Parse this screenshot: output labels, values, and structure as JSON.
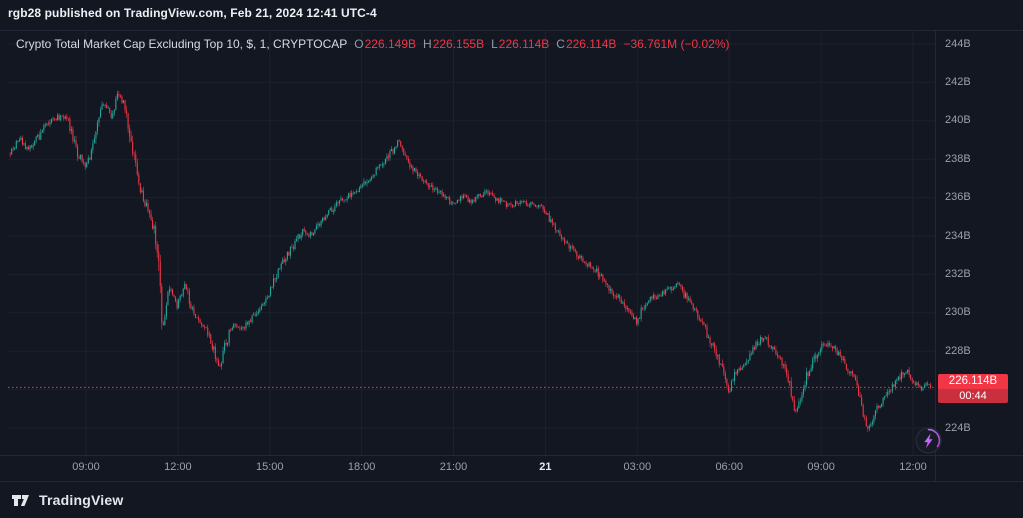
{
  "header": {
    "published_line": "rgb28 published on TradingView.com, Feb 21, 2024 12:41 UTC-4"
  },
  "symbol_bar": {
    "title": "Crypto Total Market Cap Excluding Top 10, $, 1, CRYPTOCAP",
    "ohlc": [
      {
        "name": "open",
        "label": "O",
        "value": "226.149B"
      },
      {
        "name": "high",
        "label": "H",
        "value": "226.155B"
      },
      {
        "name": "low",
        "label": "L",
        "value": "226.114B"
      },
      {
        "name": "close",
        "label": "C",
        "value": "226.114B"
      }
    ],
    "change": "−36.761M (−0.02%)"
  },
  "price_scale": {
    "suffix": "B",
    "ticks": [
      244,
      242,
      240,
      238,
      236,
      234,
      232,
      230,
      228,
      224
    ]
  },
  "time_scale": {
    "ticks": [
      {
        "text": "09:00",
        "minutes": 150,
        "emphasis": false
      },
      {
        "text": "12:00",
        "minutes": 330,
        "emphasis": false
      },
      {
        "text": "15:00",
        "minutes": 510,
        "emphasis": false
      },
      {
        "text": "18:00",
        "minutes": 690,
        "emphasis": false
      },
      {
        "text": "21:00",
        "minutes": 870,
        "emphasis": false
      },
      {
        "text": "21",
        "minutes": 1050,
        "emphasis": true
      },
      {
        "text": "03:00",
        "minutes": 1230,
        "emphasis": false
      },
      {
        "text": "06:00",
        "minutes": 1410,
        "emphasis": false
      },
      {
        "text": "09:00",
        "minutes": 1590,
        "emphasis": false
      },
      {
        "text": "12:00",
        "minutes": 1770,
        "emphasis": false
      }
    ]
  },
  "price_label": {
    "value": "226.114B",
    "countdown": "00:44"
  },
  "footer": {
    "brand": "TradingView"
  },
  "chart_data": {
    "type": "candlestick",
    "title": "Crypto Total Market Cap Excluding Top 10, $, 1, CRYPTOCAP",
    "interval": "1 minute",
    "unit": "billions USD",
    "ohlc": {
      "open": 226.149,
      "high": 226.155,
      "low": 226.114,
      "close": 226.114
    },
    "change_abs": "−36.761M",
    "change_pct": "−0.02%",
    "last_price": 226.114,
    "bar_countdown": "00:44",
    "y_axis": {
      "min": 222.6,
      "max": 244.7,
      "tick_interval": 2,
      "grid": [
        224,
        226,
        228,
        230,
        232,
        234,
        236,
        238,
        240,
        242,
        244
      ]
    },
    "x_axis_note": "minutes measured from ~06:30 on Feb 20, UTC-4; session ends 12:41 Feb 21",
    "colors": {
      "up": "#26a69a",
      "down": "#f23645",
      "badge": "#f23645",
      "badge_countdown": "#c92f3d"
    },
    "price_path": [
      [
        0,
        238.3
      ],
      [
        12,
        238.7
      ],
      [
        25,
        239.0
      ],
      [
        35,
        238.5
      ],
      [
        48,
        238.8
      ],
      [
        60,
        239.2
      ],
      [
        72,
        239.7
      ],
      [
        85,
        240.0
      ],
      [
        100,
        240.2
      ],
      [
        112,
        240.3
      ],
      [
        122,
        239.5
      ],
      [
        135,
        238.3
      ],
      [
        150,
        237.7
      ],
      [
        160,
        238.1
      ],
      [
        170,
        239.3
      ],
      [
        180,
        240.4
      ],
      [
        187,
        241.0
      ],
      [
        194,
        240.6
      ],
      [
        202,
        240.2
      ],
      [
        210,
        241.1
      ],
      [
        217,
        241.5
      ],
      [
        224,
        240.9
      ],
      [
        232,
        240.2
      ],
      [
        242,
        238.6
      ],
      [
        252,
        237.2
      ],
      [
        263,
        236.0
      ],
      [
        274,
        235.2
      ],
      [
        285,
        234.5
      ],
      [
        295,
        232.2
      ],
      [
        302,
        228.9
      ],
      [
        308,
        230.4
      ],
      [
        315,
        231.3
      ],
      [
        322,
        230.8
      ],
      [
        330,
        230.3
      ],
      [
        338,
        231.0
      ],
      [
        346,
        231.5
      ],
      [
        355,
        230.5
      ],
      [
        364,
        229.8
      ],
      [
        375,
        229.4
      ],
      [
        388,
        229.0
      ],
      [
        398,
        228.4
      ],
      [
        406,
        227.6
      ],
      [
        413,
        227.1
      ],
      [
        421,
        228.0
      ],
      [
        432,
        228.9
      ],
      [
        444,
        229.4
      ],
      [
        456,
        229.1
      ],
      [
        470,
        229.5
      ],
      [
        484,
        230.0
      ],
      [
        498,
        230.5
      ],
      [
        510,
        230.9
      ],
      [
        523,
        231.9
      ],
      [
        537,
        232.6
      ],
      [
        551,
        233.2
      ],
      [
        564,
        233.8
      ],
      [
        577,
        234.3
      ],
      [
        589,
        234.0
      ],
      [
        602,
        234.4
      ],
      [
        616,
        234.9
      ],
      [
        630,
        235.3
      ],
      [
        645,
        235.7
      ],
      [
        659,
        236.0
      ],
      [
        674,
        236.3
      ],
      [
        690,
        236.5
      ],
      [
        703,
        236.9
      ],
      [
        716,
        237.3
      ],
      [
        729,
        237.7
      ],
      [
        741,
        238.1
      ],
      [
        753,
        238.5
      ],
      [
        763,
        238.9
      ],
      [
        772,
        238.5
      ],
      [
        782,
        237.9
      ],
      [
        793,
        237.4
      ],
      [
        806,
        237.1
      ],
      [
        819,
        236.7
      ],
      [
        832,
        236.4
      ],
      [
        846,
        236.2
      ],
      [
        859,
        236.0
      ],
      [
        870,
        235.6
      ],
      [
        881,
        235.9
      ],
      [
        893,
        236.1
      ],
      [
        904,
        235.8
      ],
      [
        916,
        235.9
      ],
      [
        929,
        236.2
      ],
      [
        941,
        236.3
      ],
      [
        953,
        236.0
      ],
      [
        965,
        235.8
      ],
      [
        977,
        235.5
      ],
      [
        990,
        235.7
      ],
      [
        1003,
        235.8
      ],
      [
        1016,
        235.6
      ],
      [
        1030,
        235.7
      ],
      [
        1042,
        235.5
      ],
      [
        1050,
        235.4
      ],
      [
        1061,
        234.8
      ],
      [
        1074,
        234.2
      ],
      [
        1087,
        233.8
      ],
      [
        1100,
        233.4
      ],
      [
        1113,
        233.0
      ],
      [
        1126,
        232.7
      ],
      [
        1139,
        232.5
      ],
      [
        1151,
        232.2
      ],
      [
        1163,
        231.8
      ],
      [
        1175,
        231.3
      ],
      [
        1188,
        230.9
      ],
      [
        1200,
        230.6
      ],
      [
        1212,
        230.2
      ],
      [
        1224,
        229.8
      ],
      [
        1231,
        229.5
      ],
      [
        1240,
        230.2
      ],
      [
        1252,
        230.6
      ],
      [
        1264,
        230.8
      ],
      [
        1277,
        231.0
      ],
      [
        1290,
        231.1
      ],
      [
        1302,
        231.3
      ],
      [
        1312,
        231.5
      ],
      [
        1320,
        231.1
      ],
      [
        1333,
        230.6
      ],
      [
        1346,
        230.1
      ],
      [
        1358,
        229.5
      ],
      [
        1370,
        228.8
      ],
      [
        1382,
        228.1
      ],
      [
        1394,
        227.4
      ],
      [
        1404,
        226.6
      ],
      [
        1411,
        225.7
      ],
      [
        1418,
        226.6
      ],
      [
        1428,
        227.0
      ],
      [
        1440,
        227.4
      ],
      [
        1452,
        227.8
      ],
      [
        1464,
        228.3
      ],
      [
        1476,
        228.7
      ],
      [
        1488,
        228.5
      ],
      [
        1500,
        228.0
      ],
      [
        1512,
        227.5
      ],
      [
        1522,
        227.0
      ],
      [
        1532,
        226.0
      ],
      [
        1540,
        224.8
      ],
      [
        1547,
        225.2
      ],
      [
        1556,
        226.1
      ],
      [
        1566,
        226.9
      ],
      [
        1576,
        227.5
      ],
      [
        1586,
        228.0
      ],
      [
        1596,
        228.3
      ],
      [
        1606,
        228.4
      ],
      [
        1617,
        228.1
      ],
      [
        1629,
        227.7
      ],
      [
        1641,
        227.2
      ],
      [
        1652,
        226.8
      ],
      [
        1662,
        226.1
      ],
      [
        1672,
        225.0
      ],
      [
        1680,
        223.9
      ],
      [
        1687,
        224.2
      ],
      [
        1696,
        224.7
      ],
      [
        1706,
        225.2
      ],
      [
        1716,
        225.7
      ],
      [
        1726,
        226.0
      ],
      [
        1736,
        226.3
      ],
      [
        1746,
        226.7
      ],
      [
        1755,
        227.0
      ],
      [
        1763,
        226.9
      ],
      [
        1772,
        226.5
      ],
      [
        1781,
        226.1
      ],
      [
        1790,
        226.1
      ],
      [
        1799,
        226.3
      ],
      [
        1808,
        226.114
      ]
    ]
  }
}
